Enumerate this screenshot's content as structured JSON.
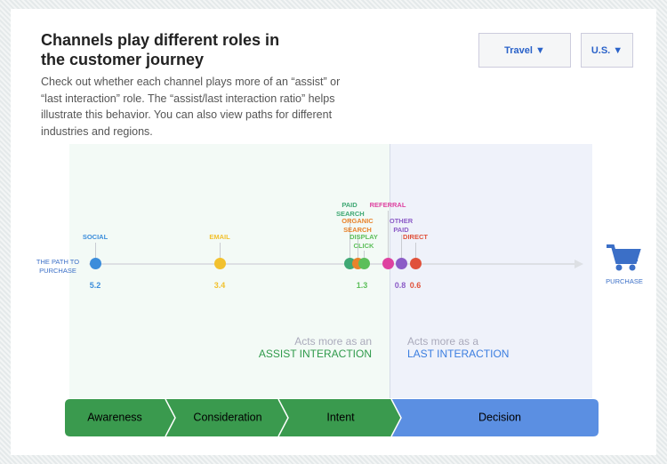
{
  "header": {
    "title": "Channels play different roles in the customer journey",
    "description": "Check out whether each channel plays more of an “assist” or “last interaction” role. The “assist/last interaction ratio” helps illustrate this behavior. You can also view paths for different industries and regions."
  },
  "filters": [
    "Travel ▼",
    "U.S. ▼"
  ],
  "path_label": "THE PATH TO PURCHASE",
  "end_label": "PURCHASE",
  "channels": [
    {
      "label": "SOCIAL",
      "color": "#3b8ddb"
    },
    {
      "label": "EMAIL",
      "color": "#f2c12e"
    },
    {
      "label": "PAID SEARCH",
      "color": "#3fa874"
    },
    {
      "label": "ORGANIC SEARCH",
      "color": "#e8832b"
    },
    {
      "label": "DISPLAY CLICK",
      "color": "#5cbf5a"
    },
    {
      "label": "REFERRAL",
      "color": "#de42a0"
    },
    {
      "label": "OTHER PAID",
      "color": "#8c5cc7"
    },
    {
      "label": "DIRECT",
      "color": "#e0513b"
    }
  ],
  "ratios": [
    {
      "value": 5.2,
      "color": "#3b8ddb"
    },
    {
      "value": 3.4,
      "color": "#f2c12e"
    },
    {
      "value": 1.3,
      "color": "#5cbf5a"
    },
    {
      "value": 0.8,
      "color": "#8c5cc7"
    },
    {
      "value": 0.6,
      "color": "#e0513b"
    }
  ],
  "assist": {
    "line1": "Acts more as an",
    "line2": "ASSIST INTERACTION"
  },
  "last": {
    "line1": "Acts more as a",
    "line2": "LAST INTERACTION"
  },
  "stages": [
    "Awareness",
    "Consideration",
    "Intent",
    "Decision"
  ]
}
